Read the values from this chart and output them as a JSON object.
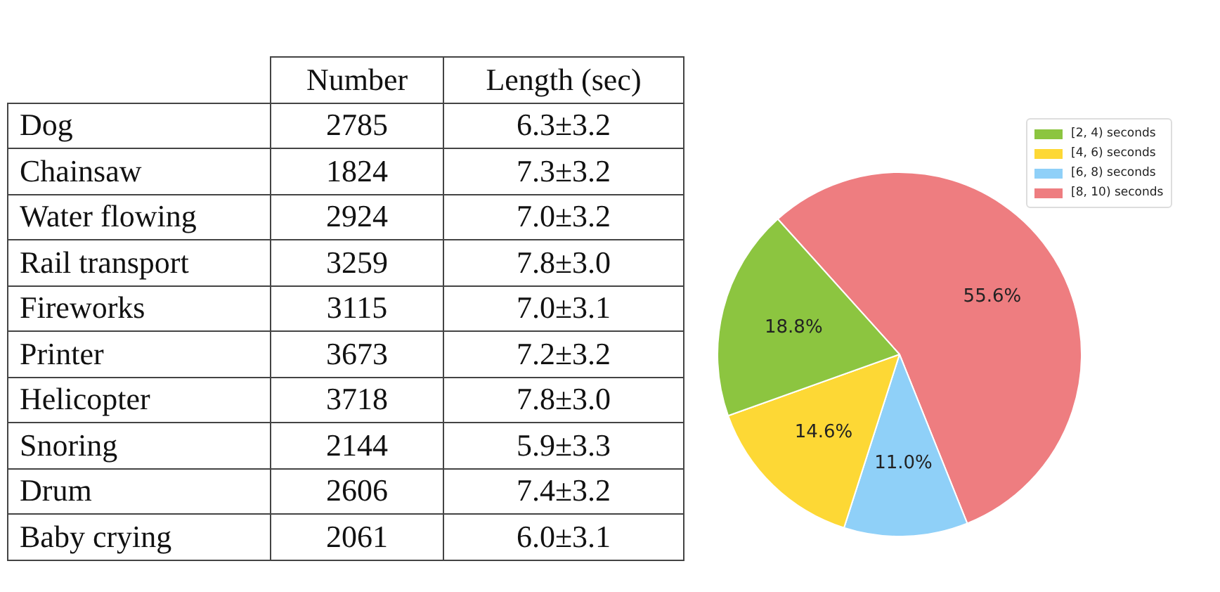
{
  "chart_data": [
    {
      "type": "other",
      "categories": [
        "Number",
        "Length (sec)"
      ],
      "y_categories": [
        "Dog",
        "Chainsaw",
        "Water flowing",
        "Rail transport",
        "Fireworks",
        "Printer",
        "Helicopter",
        "Snoring",
        "Drum",
        "Baby crying"
      ],
      "cell_labels": [
        [
          "2785",
          "6.3±3.2"
        ],
        [
          "1824",
          "7.3±3.2"
        ],
        [
          "2924",
          "7.0±3.2"
        ],
        [
          "3259",
          "7.8±3.0"
        ],
        [
          "3115",
          "7.0±3.1"
        ],
        [
          "3673",
          "7.2±3.2"
        ],
        [
          "3718",
          "7.8±3.0"
        ],
        [
          "2144",
          "5.9±3.3"
        ],
        [
          "2606",
          "7.4±3.2"
        ],
        [
          "2061",
          "6.0±3.1"
        ]
      ]
    },
    {
      "type": "pie",
      "categories": [
        "[2, 4) seconds",
        "[4, 6) seconds",
        "[6, 8) seconds",
        "[8, 10) seconds"
      ],
      "values": [
        18.8,
        14.6,
        11.0,
        55.6
      ],
      "colors": [
        "#8cc540",
        "#fdd835",
        "#8fd0f8",
        "#ee7d80"
      ],
      "value_labels": [
        "18.8%",
        "14.6%",
        "11.0%",
        "55.6%"
      ],
      "legend": "top right"
    }
  ]
}
